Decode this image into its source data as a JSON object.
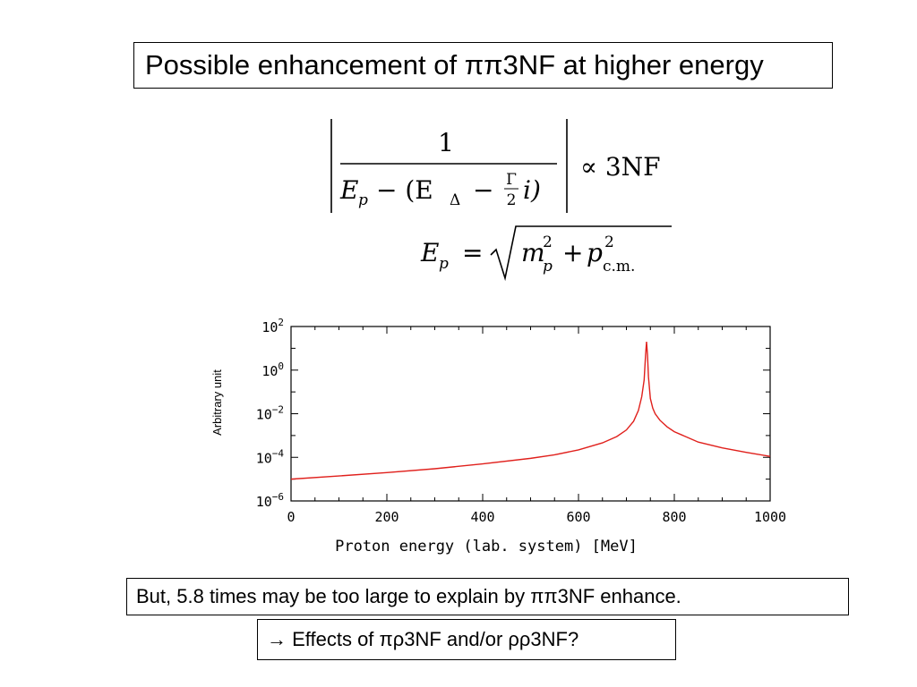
{
  "slide": {
    "title": "Possible enhancement of ππ3NF at higher energy",
    "note": "But, 5.8 times may be too large to explain by ππ3NF enhance.",
    "effects": "→ Effects of πρ3NF and/or ρρ3NF?"
  },
  "formula": {
    "numerator": "1",
    "denominator_lead": "E",
    "denominator_lead_sub": "p",
    "denominator_minus": "− (E",
    "denominator_delta": "Δ",
    "denominator_tail": "−",
    "gamma": "Γ",
    "two": "2",
    "i_close": "i)",
    "propto": "∝ 3NF",
    "ep_lhs": "E",
    "ep_lhs_sub": "p",
    "equals": "=",
    "m": "m",
    "m_sup": "2",
    "m_sub": "p",
    "plus": "+",
    "p": "p",
    "p_sup": "2",
    "p_sub": "c.m."
  },
  "chart_data": {
    "type": "line",
    "title": "",
    "xlabel": "Proton energy (lab. system) [MeV]",
    "ylabel": "Arbitrary unit",
    "xlim": [
      0,
      1000
    ],
    "ylim_log10": [
      -6,
      2
    ],
    "y_scale": "log",
    "x_ticks": [
      "0",
      "200",
      "400",
      "600",
      "800",
      "1000"
    ],
    "y_ticks": [
      {
        "base": "10",
        "exp": "2"
      },
      {
        "base": "10",
        "exp": "0"
      },
      {
        "base": "10",
        "exp": "−2"
      },
      {
        "base": "10",
        "exp": "−4"
      },
      {
        "base": "10",
        "exp": "−6"
      }
    ],
    "series": [
      {
        "color": "#e0201c",
        "x": [
          0,
          100,
          200,
          300,
          400,
          500,
          550,
          600,
          650,
          680,
          700,
          715,
          725,
          732,
          737,
          740,
          742,
          744,
          746,
          750,
          755,
          760,
          770,
          785,
          800,
          850,
          900,
          950,
          1000
        ],
        "y": [
          1e-05,
          1.4e-05,
          2e-05,
          3e-05,
          5e-05,
          9e-05,
          0.00013,
          0.00022,
          0.00046,
          0.0009,
          0.0018,
          0.0045,
          0.014,
          0.06,
          0.35,
          5.0,
          20.0,
          5.0,
          0.5,
          0.05,
          0.018,
          0.01,
          0.005,
          0.0025,
          0.0015,
          0.0005,
          0.00027,
          0.00017,
          0.00011
        ]
      }
    ]
  }
}
